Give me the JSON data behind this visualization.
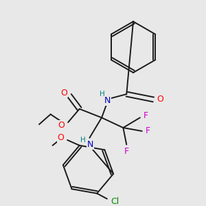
{
  "bg_color": "#e8e8e8",
  "bond_color": "#1a1a1a",
  "atom_colors": {
    "O": "#ff0000",
    "N": "#0000bb",
    "F": "#cc00cc",
    "Cl": "#008800",
    "H": "#008080",
    "C": "#1a1a1a"
  },
  "figsize": [
    3.0,
    3.0
  ],
  "dpi": 100
}
